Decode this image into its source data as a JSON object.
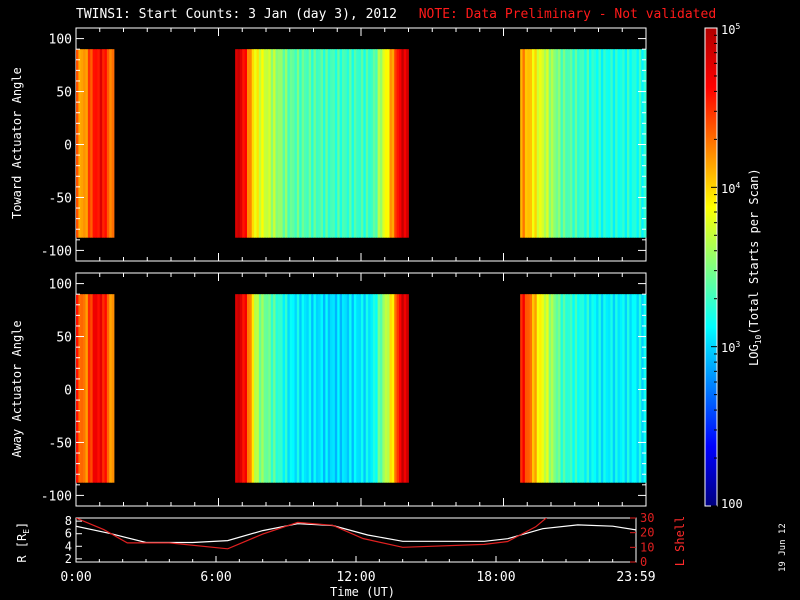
{
  "title": {
    "main": "TWINS1: Start Counts:  3 Jan (day   3), 2012",
    "note": "NOTE: Data Preliminary - Not validated"
  },
  "colors": {
    "background": "#000000",
    "axis": "#ffffff",
    "note": "#ff1a1a",
    "lshell": "#e02020",
    "radius": "#ffffff"
  },
  "timestamp": "19 Jun 12",
  "colorbar": {
    "label_prefix": "LOG",
    "label_sub": "10",
    "label_suffix": "(Total Starts per Scan)",
    "scale": "log",
    "ticks": [
      {
        "base": "10",
        "exp": "5",
        "value": 100000
      },
      {
        "base": "10",
        "exp": "4",
        "value": 10000
      },
      {
        "base": "10",
        "exp": "3",
        "value": 1000
      },
      {
        "base": "100",
        "exp": "",
        "value": 100
      }
    ],
    "colormap": [
      "#00007f",
      "#0000ff",
      "#0080ff",
      "#00ffff",
      "#80ff80",
      "#ffff00",
      "#ff8000",
      "#ff0000",
      "#b00000"
    ]
  },
  "xaxis": {
    "label": "Time (UT)",
    "ticks": [
      "0:00",
      "6:00",
      "12:00",
      "18:00",
      "23:59"
    ]
  },
  "panels": {
    "top": {
      "ylabel": "Toward Actuator Angle",
      "yticks": [
        "100",
        "50",
        "0",
        "-50",
        "-100"
      ]
    },
    "middle": {
      "ylabel": "Away Actuator Angle",
      "yticks": [
        "100",
        "50",
        "0",
        "-50",
        "-100"
      ]
    },
    "bottom": {
      "ylabel_left": "R [R",
      "ylabel_left_sub": "E",
      "ylabel_left_end": "]",
      "ylabel_right": "L Shell",
      "left_ticks": [
        "8",
        "6",
        "4",
        "2"
      ],
      "right_ticks": [
        "30",
        "20",
        "10",
        "0"
      ]
    }
  },
  "chart_data": [
    {
      "type": "heatmap",
      "title": "TWINS1: Start Counts:  3 Jan (day   3), 2012",
      "ylabel": "Toward Actuator Angle",
      "xlabel": "",
      "xlim": [
        0,
        24
      ],
      "ylim": [
        -110,
        110
      ],
      "data_ylim": [
        -88,
        90
      ],
      "z_scale": "log10",
      "zlim": [
        100,
        100000
      ],
      "intervals_hours": [
        [
          0.0,
          1.6
        ],
        [
          6.7,
          14.0
        ],
        [
          18.7,
          24.0
        ]
      ],
      "profile_log10": [
        {
          "t": 0.0,
          "z": 4.3
        },
        {
          "t": 0.3,
          "z": 4.1
        },
        {
          "t": 0.7,
          "z": 4.5
        },
        {
          "t": 1.1,
          "z": 4.7
        },
        {
          "t": 1.5,
          "z": 4.2
        },
        {
          "t": 6.8,
          "z": 4.9
        },
        {
          "t": 7.1,
          "z": 4.6
        },
        {
          "t": 7.5,
          "z": 3.9
        },
        {
          "t": 9.0,
          "z": 3.4
        },
        {
          "t": 11.0,
          "z": 3.3
        },
        {
          "t": 12.5,
          "z": 3.3
        },
        {
          "t": 13.2,
          "z": 4.0
        },
        {
          "t": 13.7,
          "z": 4.8
        },
        {
          "t": 18.8,
          "z": 4.2
        },
        {
          "t": 19.5,
          "z": 3.8
        },
        {
          "t": 20.5,
          "z": 3.4
        },
        {
          "t": 22.0,
          "z": 3.2
        },
        {
          "t": 23.5,
          "z": 3.2
        }
      ]
    },
    {
      "type": "heatmap",
      "ylabel": "Away Actuator Angle",
      "xlabel": "",
      "xlim": [
        0,
        24
      ],
      "ylim": [
        -110,
        110
      ],
      "data_ylim": [
        -88,
        90
      ],
      "z_scale": "log10",
      "zlim": [
        100,
        100000
      ],
      "intervals_hours": [
        [
          0.0,
          1.6
        ],
        [
          6.7,
          14.0
        ],
        [
          18.7,
          24.0
        ]
      ],
      "profile_log10": [
        {
          "t": 0.0,
          "z": 4.5
        },
        {
          "t": 0.4,
          "z": 4.2
        },
        {
          "t": 0.8,
          "z": 4.7
        },
        {
          "t": 1.2,
          "z": 4.6
        },
        {
          "t": 1.5,
          "z": 4.1
        },
        {
          "t": 6.8,
          "z": 4.9
        },
        {
          "t": 7.2,
          "z": 4.5
        },
        {
          "t": 7.6,
          "z": 3.6
        },
        {
          "t": 9.0,
          "z": 3.1
        },
        {
          "t": 11.0,
          "z": 3.0
        },
        {
          "t": 12.5,
          "z": 3.1
        },
        {
          "t": 13.3,
          "z": 3.9
        },
        {
          "t": 13.7,
          "z": 4.8
        },
        {
          "t": 18.8,
          "z": 4.6
        },
        {
          "t": 19.5,
          "z": 3.9
        },
        {
          "t": 20.5,
          "z": 3.3
        },
        {
          "t": 22.0,
          "z": 3.1
        },
        {
          "t": 23.5,
          "z": 3.1
        }
      ]
    },
    {
      "type": "line",
      "xlabel": "Time (UT)",
      "xlim": [
        0,
        24
      ],
      "ylabel": "R [RE]",
      "ylim": [
        1.5,
        8.5
      ],
      "y2label": "L Shell",
      "y2lim": [
        0,
        30
      ],
      "series": [
        {
          "name": "R [RE]",
          "axis": "left",
          "x": [
            0,
            1.5,
            3,
            5,
            6.5,
            8,
            9.5,
            11,
            12.5,
            14,
            16,
            17.5,
            18.5,
            20,
            21.5,
            23,
            24
          ],
          "y": [
            7.2,
            6.0,
            4.6,
            4.6,
            4.9,
            6.5,
            7.6,
            7.3,
            5.8,
            4.8,
            4.8,
            4.8,
            5.2,
            6.8,
            7.4,
            7.2,
            6.6
          ]
        },
        {
          "name": "L Shell",
          "axis": "right",
          "x": [
            0,
            1.2,
            2.2,
            4,
            6.5,
            8,
            9.5,
            11,
            12.3,
            14,
            17.5,
            18.5,
            19.7,
            20.3
          ],
          "y": [
            30,
            22,
            13,
            13,
            9,
            19,
            27,
            25,
            16,
            10,
            12,
            14,
            24,
            32
          ]
        }
      ]
    }
  ]
}
